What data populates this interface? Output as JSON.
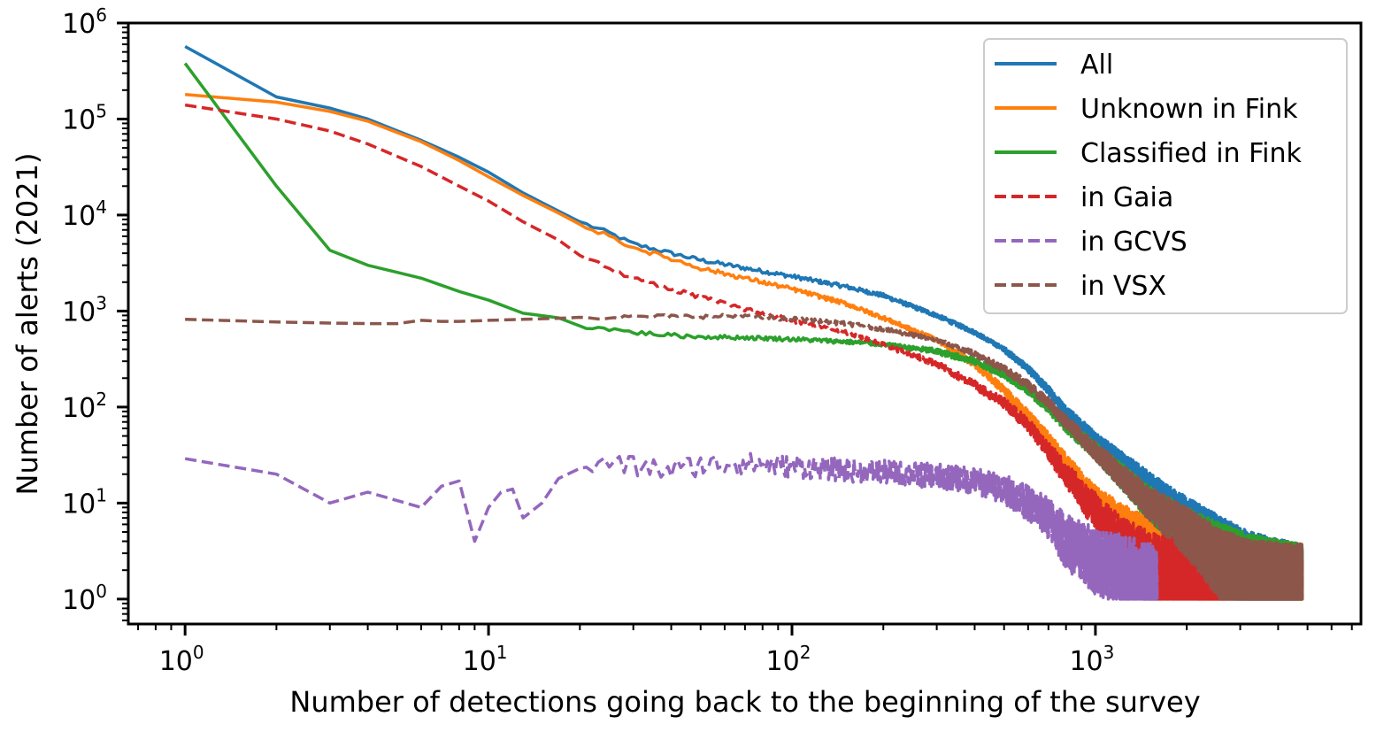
{
  "chart_data": {
    "type": "line",
    "title": "",
    "xlabel": "Number of detections going back to the beginning of the survey",
    "ylabel": "Number of alerts (2021)",
    "xscale": "log",
    "yscale": "log",
    "xlim": [
      0.65,
      7500
    ],
    "ylim": [
      0.55,
      1000000
    ],
    "grid": false,
    "legend_position": "top-right",
    "x_ticks": [
      {
        "base": "10",
        "exp": "0"
      },
      {
        "base": "10",
        "exp": "1"
      },
      {
        "base": "10",
        "exp": "2"
      },
      {
        "base": "10",
        "exp": "3"
      }
    ],
    "y_ticks": [
      {
        "base": "10",
        "exp": "0"
      },
      {
        "base": "10",
        "exp": "1"
      },
      {
        "base": "10",
        "exp": "2"
      },
      {
        "base": "10",
        "exp": "3"
      },
      {
        "base": "10",
        "exp": "4"
      },
      {
        "base": "10",
        "exp": "5"
      },
      {
        "base": "10",
        "exp": "6"
      }
    ],
    "series": [
      {
        "name": "All",
        "color": "#1f77b4",
        "style": "solid",
        "points": [
          [
            1,
            570000
          ],
          [
            2,
            170000
          ],
          [
            3,
            130000
          ],
          [
            4,
            100000
          ],
          [
            6,
            60000
          ],
          [
            8,
            40000
          ],
          [
            10,
            28000
          ],
          [
            13,
            17000
          ],
          [
            17,
            11000
          ],
          [
            20,
            8500
          ],
          [
            25,
            6500
          ],
          [
            30,
            5000
          ],
          [
            40,
            4000
          ],
          [
            50,
            3400
          ],
          [
            70,
            2800
          ],
          [
            100,
            2300
          ],
          [
            150,
            1800
          ],
          [
            200,
            1450
          ],
          [
            300,
            900
          ],
          [
            400,
            600
          ],
          [
            500,
            400
          ],
          [
            600,
            250
          ],
          [
            700,
            150
          ],
          [
            800,
            90
          ],
          [
            1000,
            45
          ],
          [
            1200,
            28
          ],
          [
            1500,
            15
          ],
          [
            2000,
            7
          ],
          [
            2500,
            4
          ],
          [
            3200,
            2
          ],
          [
            4800,
            1
          ]
        ]
      },
      {
        "name": "Unknown in Fink",
        "color": "#ff7f0e",
        "style": "solid",
        "points": [
          [
            1,
            180000
          ],
          [
            2,
            150000
          ],
          [
            3,
            120000
          ],
          [
            4,
            95000
          ],
          [
            6,
            58000
          ],
          [
            8,
            37000
          ],
          [
            10,
            25000
          ],
          [
            13,
            16000
          ],
          [
            17,
            10500
          ],
          [
            20,
            8000
          ],
          [
            25,
            6000
          ],
          [
            30,
            4600
          ],
          [
            40,
            3500
          ],
          [
            50,
            2800
          ],
          [
            70,
            2200
          ],
          [
            100,
            1700
          ],
          [
            150,
            1200
          ],
          [
            200,
            850
          ],
          [
            300,
            500
          ],
          [
            400,
            280
          ],
          [
            500,
            150
          ],
          [
            600,
            80
          ],
          [
            700,
            45
          ],
          [
            800,
            25
          ],
          [
            1000,
            10
          ],
          [
            1200,
            6
          ],
          [
            1500,
            3.5
          ],
          [
            2000,
            2.5
          ],
          [
            2500,
            1.8
          ],
          [
            3200,
            1.2
          ],
          [
            4800,
            1
          ]
        ]
      },
      {
        "name": "Classified in Fink",
        "color": "#2ca02c",
        "style": "solid",
        "points": [
          [
            1,
            380000
          ],
          [
            2,
            20000
          ],
          [
            3,
            4300
          ],
          [
            4,
            3000
          ],
          [
            6,
            2200
          ],
          [
            8,
            1600
          ],
          [
            10,
            1300
          ],
          [
            13,
            950
          ],
          [
            17,
            850
          ],
          [
            20,
            700
          ],
          [
            25,
            650
          ],
          [
            30,
            600
          ],
          [
            40,
            560
          ],
          [
            50,
            540
          ],
          [
            70,
            530
          ],
          [
            100,
            510
          ],
          [
            150,
            480
          ],
          [
            200,
            450
          ],
          [
            300,
            380
          ],
          [
            400,
            300
          ],
          [
            500,
            220
          ],
          [
            600,
            150
          ],
          [
            700,
            100
          ],
          [
            800,
            65
          ],
          [
            1000,
            35
          ],
          [
            1200,
            20
          ],
          [
            1500,
            10
          ],
          [
            2000,
            5
          ],
          [
            2500,
            3
          ],
          [
            3200,
            1.8
          ],
          [
            4800,
            1
          ]
        ]
      },
      {
        "name": "in Gaia",
        "color": "#d62728",
        "style": "dashed",
        "points": [
          [
            1,
            140000
          ],
          [
            2,
            100000
          ],
          [
            3,
            75000
          ],
          [
            4,
            55000
          ],
          [
            6,
            32000
          ],
          [
            8,
            20000
          ],
          [
            10,
            14000
          ],
          [
            13,
            8500
          ],
          [
            17,
            5500
          ],
          [
            20,
            3800
          ],
          [
            25,
            2800
          ],
          [
            30,
            2200
          ],
          [
            40,
            1700
          ],
          [
            50,
            1400
          ],
          [
            70,
            1050
          ],
          [
            100,
            800
          ],
          [
            150,
            600
          ],
          [
            200,
            450
          ],
          [
            300,
            280
          ],
          [
            400,
            170
          ],
          [
            500,
            110
          ],
          [
            600,
            65
          ],
          [
            700,
            35
          ],
          [
            800,
            20
          ],
          [
            1000,
            8
          ],
          [
            1200,
            4
          ],
          [
            1500,
            2
          ],
          [
            2000,
            1.3
          ],
          [
            2500,
            1.1
          ],
          [
            3200,
            1
          ],
          [
            4800,
            1
          ]
        ]
      },
      {
        "name": "in GCVS",
        "color": "#9467bd",
        "style": "dashed",
        "points": [
          [
            1,
            29
          ],
          [
            2,
            20
          ],
          [
            3,
            10
          ],
          [
            4,
            13
          ],
          [
            6,
            9
          ],
          [
            7,
            15
          ],
          [
            8,
            17
          ],
          [
            9,
            4
          ],
          [
            10,
            9
          ],
          [
            11,
            13
          ],
          [
            12,
            14
          ],
          [
            13,
            7
          ],
          [
            15,
            10
          ],
          [
            17,
            18
          ],
          [
            20,
            23
          ],
          [
            25,
            26
          ],
          [
            30,
            24
          ],
          [
            40,
            22
          ],
          [
            50,
            25
          ],
          [
            70,
            26
          ],
          [
            100,
            24
          ],
          [
            150,
            22
          ],
          [
            200,
            21
          ],
          [
            300,
            19
          ],
          [
            400,
            17
          ],
          [
            500,
            14
          ],
          [
            600,
            10
          ],
          [
            700,
            7
          ],
          [
            800,
            4
          ],
          [
            1000,
            2.5
          ],
          [
            1200,
            1.8
          ],
          [
            1500,
            1.2
          ],
          [
            1600,
            1
          ]
        ]
      },
      {
        "name": "in VSX",
        "color": "#8c564b",
        "style": "dashed",
        "points": [
          [
            1,
            820
          ],
          [
            2,
            770
          ],
          [
            3,
            750
          ],
          [
            4,
            740
          ],
          [
            5,
            740
          ],
          [
            6,
            800
          ],
          [
            7,
            780
          ],
          [
            8,
            780
          ],
          [
            10,
            800
          ],
          [
            13,
            820
          ],
          [
            17,
            840
          ],
          [
            20,
            860
          ],
          [
            25,
            860
          ],
          [
            30,
            870
          ],
          [
            40,
            880
          ],
          [
            50,
            880
          ],
          [
            70,
            880
          ],
          [
            100,
            830
          ],
          [
            150,
            740
          ],
          [
            200,
            650
          ],
          [
            300,
            500
          ],
          [
            400,
            360
          ],
          [
            500,
            250
          ],
          [
            600,
            170
          ],
          [
            700,
            110
          ],
          [
            800,
            70
          ],
          [
            1000,
            35
          ],
          [
            1200,
            20
          ],
          [
            1500,
            10
          ],
          [
            2000,
            5
          ],
          [
            2500,
            2.5
          ],
          [
            3200,
            1.3
          ],
          [
            4800,
            1
          ]
        ]
      }
    ]
  }
}
